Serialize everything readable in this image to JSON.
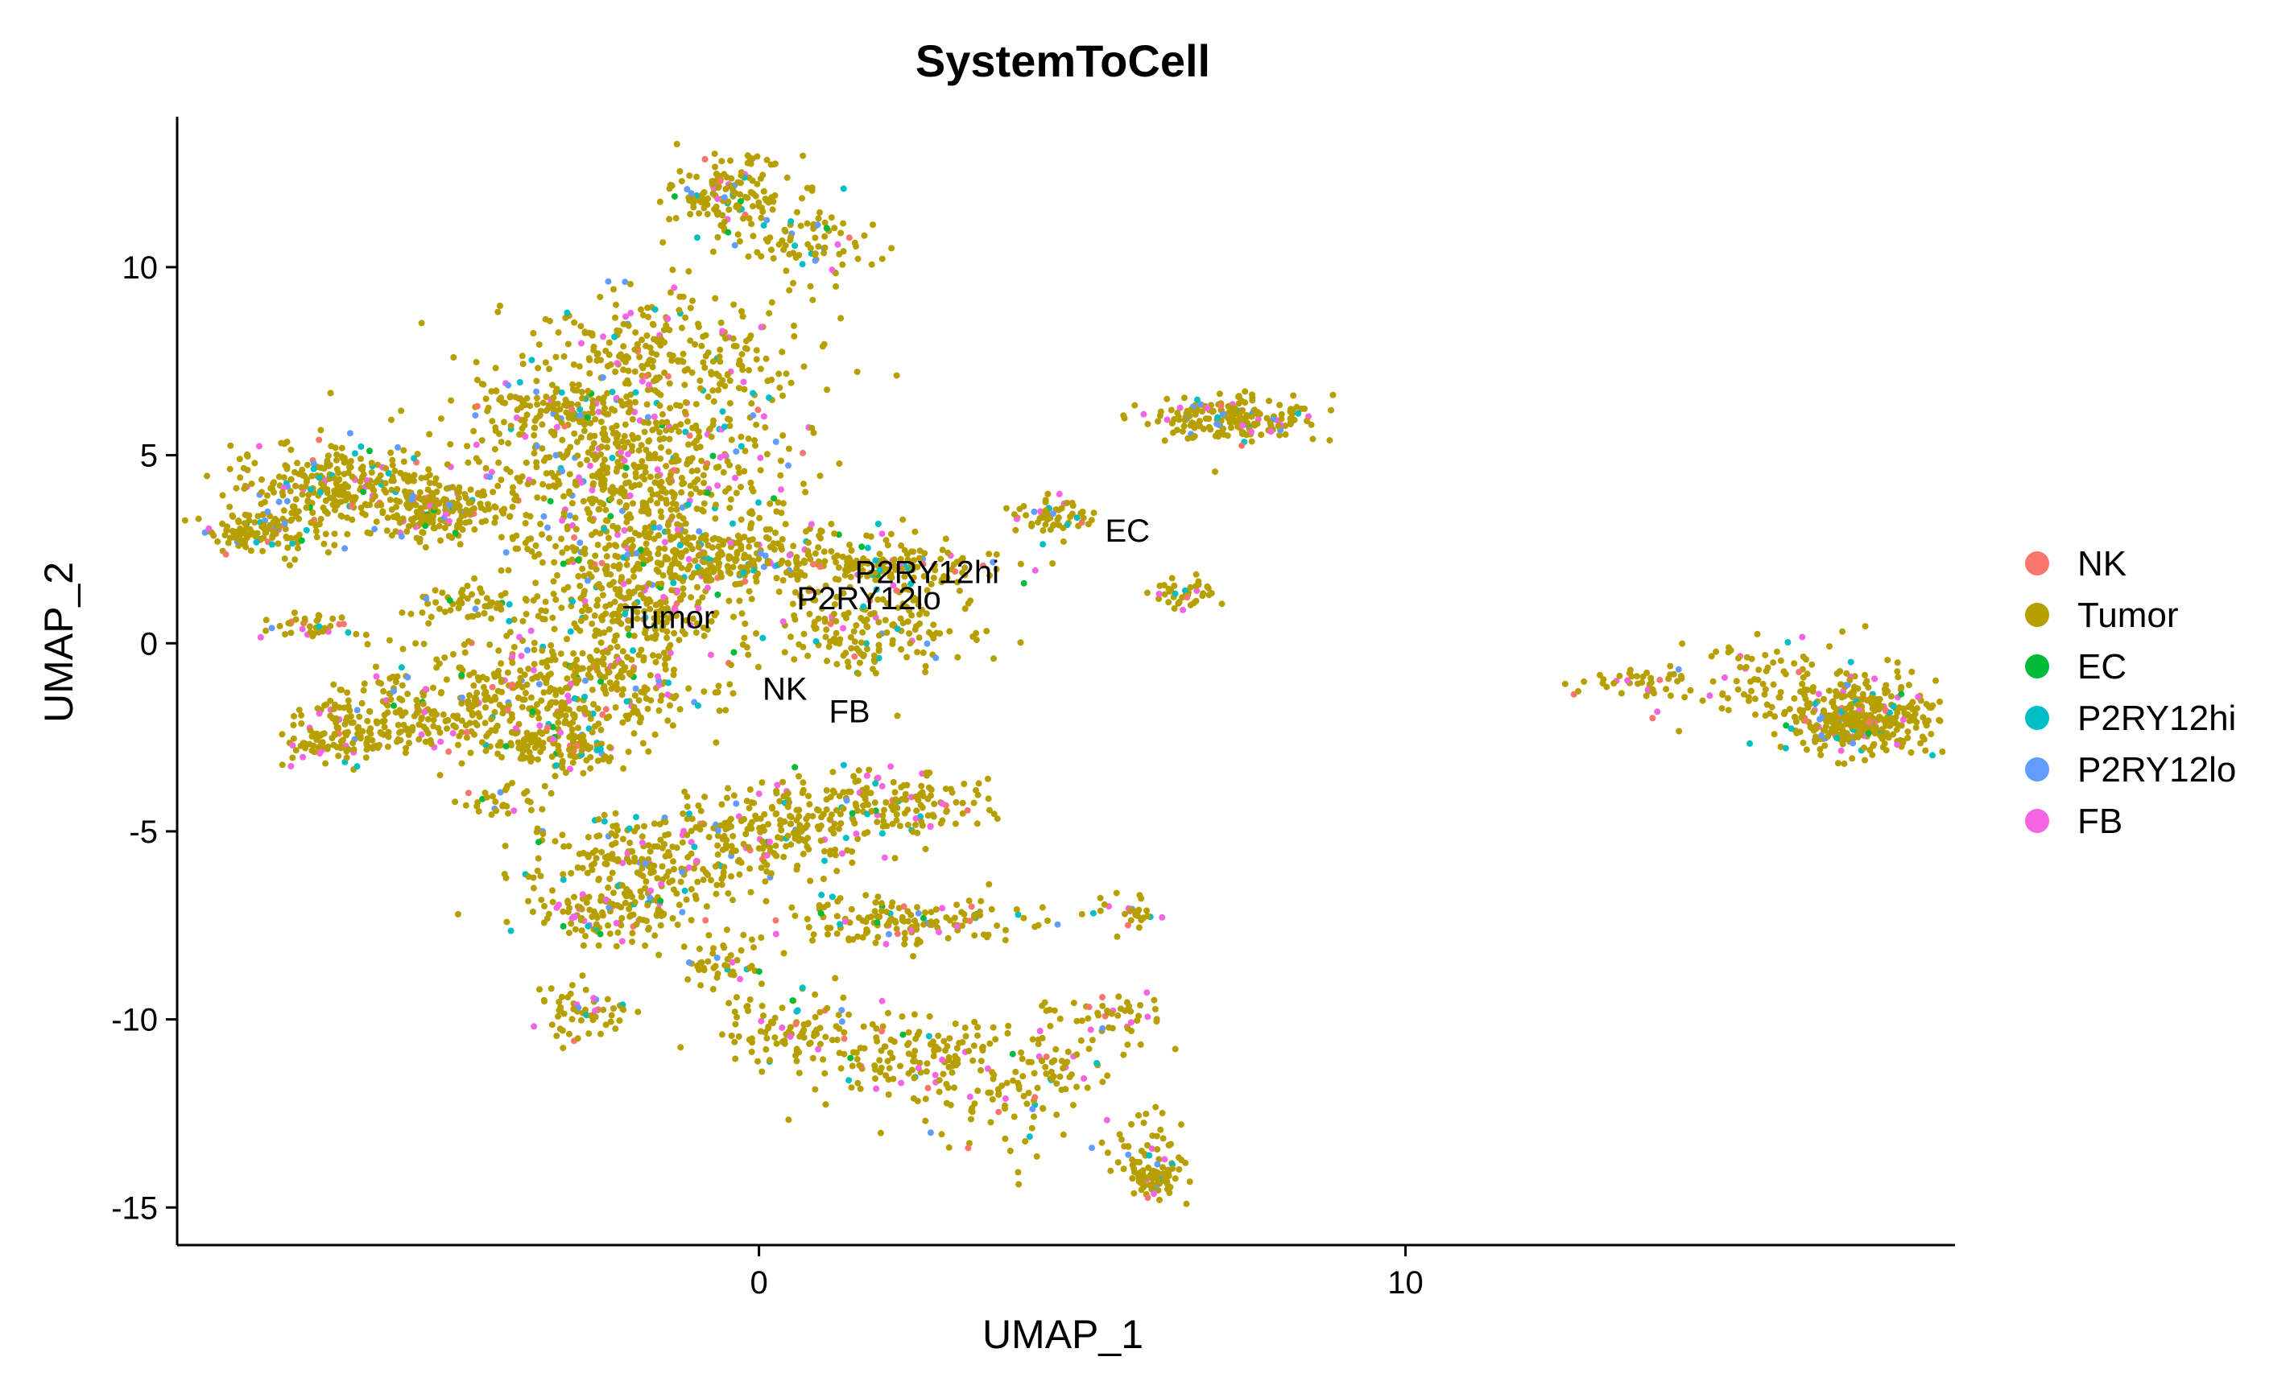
{
  "chart_data": {
    "type": "scatter",
    "title": "SystemToCell",
    "xlabel": "UMAP_1",
    "ylabel": "UMAP_2",
    "xlim": [
      -9.0,
      18.5
    ],
    "ylim": [
      -16.0,
      14.0
    ],
    "x_ticks": [
      0,
      10
    ],
    "x_tick_labels": [
      "0",
      "10"
    ],
    "y_ticks": [
      -15,
      -10,
      -5,
      0,
      5,
      10
    ],
    "y_tick_labels": [
      "-15",
      "-10",
      "-5",
      "0",
      "5",
      "10"
    ],
    "grid": false,
    "legend_position": "right",
    "series": [
      {
        "name": "NK",
        "color": "#F8766D"
      },
      {
        "name": "Tumor",
        "color": "#B79F00"
      },
      {
        "name": "EC",
        "color": "#00BA38"
      },
      {
        "name": "P2RY12hi",
        "color": "#00BFC4"
      },
      {
        "name": "P2RY12lo",
        "color": "#619CFF"
      },
      {
        "name": "FB",
        "color": "#F564E3"
      }
    ],
    "cluster_labels": [
      {
        "text": "EC",
        "x": 5.7,
        "y": 2.7
      },
      {
        "text": "P2RY12hi",
        "x": 2.6,
        "y": 1.6
      },
      {
        "text": "P2RY12lo",
        "x": 1.7,
        "y": 0.9
      },
      {
        "text": "Tumor",
        "x": -1.4,
        "y": 0.4
      },
      {
        "text": "NK",
        "x": 0.4,
        "y": -1.5
      },
      {
        "text": "FB",
        "x": 1.4,
        "y": -2.1
      }
    ],
    "clusters": [
      {
        "x": -0.5,
        "y": 12.0,
        "sx": 0.5,
        "sy": 0.5,
        "n": 140
      },
      {
        "x": 0.7,
        "y": 10.7,
        "sx": 0.6,
        "sy": 0.5,
        "n": 90
      },
      {
        "x": -1.8,
        "y": 7.5,
        "sx": 1.2,
        "sy": 1.0,
        "n": 300
      },
      {
        "x": -2.0,
        "y": 4.4,
        "sx": 1.3,
        "sy": 1.3,
        "n": 650
      },
      {
        "x": -0.8,
        "y": 2.3,
        "sx": 1.2,
        "sy": 0.5,
        "n": 300
      },
      {
        "x": -6.5,
        "y": 4.2,
        "sx": 0.8,
        "sy": 0.6,
        "n": 300
      },
      {
        "x": -5.0,
        "y": 3.5,
        "sx": 0.5,
        "sy": 0.35,
        "n": 180
      },
      {
        "x": -7.7,
        "y": 3.0,
        "sx": 0.4,
        "sy": 0.3,
        "n": 120
      },
      {
        "x": -3.2,
        "y": 6.2,
        "sx": 0.5,
        "sy": 0.3,
        "n": 80
      },
      {
        "x": -7.0,
        "y": 0.5,
        "sx": 0.4,
        "sy": 0.2,
        "n": 40
      },
      {
        "x": -4.3,
        "y": 1.0,
        "sx": 0.6,
        "sy": 0.2,
        "n": 60
      },
      {
        "x": -1.8,
        "y": 1.0,
        "sx": 0.7,
        "sy": 0.5,
        "n": 180
      },
      {
        "x": -3.0,
        "y": -1.2,
        "sx": 1.2,
        "sy": 0.8,
        "n": 450
      },
      {
        "x": -5.5,
        "y": -2.0,
        "sx": 0.8,
        "sy": 0.6,
        "n": 200
      },
      {
        "x": -6.7,
        "y": -2.7,
        "sx": 0.4,
        "sy": 0.3,
        "n": 60
      },
      {
        "x": -3.2,
        "y": -2.8,
        "sx": 0.5,
        "sy": 0.3,
        "n": 100
      },
      {
        "x": -4.0,
        "y": -4.2,
        "sx": 0.3,
        "sy": 0.2,
        "n": 30
      },
      {
        "x": -2.0,
        "y": -6.0,
        "sx": 0.8,
        "sy": 0.8,
        "n": 250
      },
      {
        "x": 0.2,
        "y": -5.0,
        "sx": 0.8,
        "sy": 0.7,
        "n": 200
      },
      {
        "x": -2.5,
        "y": -7.3,
        "sx": 0.5,
        "sy": 0.3,
        "n": 80
      },
      {
        "x": 2.0,
        "y": -4.3,
        "sx": 0.8,
        "sy": 0.5,
        "n": 160
      },
      {
        "x": 2.3,
        "y": -7.4,
        "sx": 0.9,
        "sy": 0.3,
        "n": 150
      },
      {
        "x": -0.6,
        "y": -8.5,
        "sx": 0.4,
        "sy": 0.3,
        "n": 50
      },
      {
        "x": -2.7,
        "y": -9.8,
        "sx": 0.4,
        "sy": 0.4,
        "n": 60
      },
      {
        "x": 0.5,
        "y": -10.3,
        "sx": 0.6,
        "sy": 0.5,
        "n": 100
      },
      {
        "x": 2.5,
        "y": -11.0,
        "sx": 0.9,
        "sy": 0.6,
        "n": 120
      },
      {
        "x": 3.5,
        "y": -12.0,
        "sx": 0.7,
        "sy": 0.9,
        "n": 80
      },
      {
        "x": 4.5,
        "y": -11.0,
        "sx": 0.6,
        "sy": 0.6,
        "n": 60
      },
      {
        "x": 5.5,
        "y": -10.0,
        "sx": 0.4,
        "sy": 0.4,
        "n": 40
      },
      {
        "x": 6.0,
        "y": -13.5,
        "sx": 0.3,
        "sy": 0.5,
        "n": 50
      },
      {
        "x": 6.1,
        "y": -14.3,
        "sx": 0.2,
        "sy": 0.2,
        "n": 70
      },
      {
        "x": 1.8,
        "y": 2.0,
        "sx": 1.0,
        "sy": 0.35,
        "n": 170
      },
      {
        "x": 1.8,
        "y": 0.3,
        "sx": 0.8,
        "sy": 0.5,
        "n": 160
      },
      {
        "x": 4.5,
        "y": 3.4,
        "sx": 0.3,
        "sy": 0.3,
        "n": 60
      },
      {
        "x": 7.4,
        "y": 6.0,
        "sx": 0.6,
        "sy": 0.3,
        "n": 200
      },
      {
        "x": 6.6,
        "y": 1.3,
        "sx": 0.3,
        "sy": 0.25,
        "n": 40
      },
      {
        "x": 5.7,
        "y": -7.2,
        "sx": 0.3,
        "sy": 0.2,
        "n": 30
      },
      {
        "x": 17.0,
        "y": -2.0,
        "sx": 0.6,
        "sy": 0.5,
        "n": 400
      },
      {
        "x": 15.5,
        "y": -1.0,
        "sx": 0.8,
        "sy": 0.5,
        "n": 80
      },
      {
        "x": 13.5,
        "y": -1.0,
        "sx": 0.6,
        "sy": 0.2,
        "n": 40
      }
    ],
    "category_weights": [
      {
        "name": "NK",
        "weight": 0.02
      },
      {
        "name": "Tumor",
        "weight": 0.84
      },
      {
        "name": "EC",
        "weight": 0.01
      },
      {
        "name": "P2RY12hi",
        "weight": 0.04
      },
      {
        "name": "P2RY12lo",
        "weight": 0.03
      },
      {
        "name": "FB",
        "weight": 0.06
      }
    ]
  }
}
